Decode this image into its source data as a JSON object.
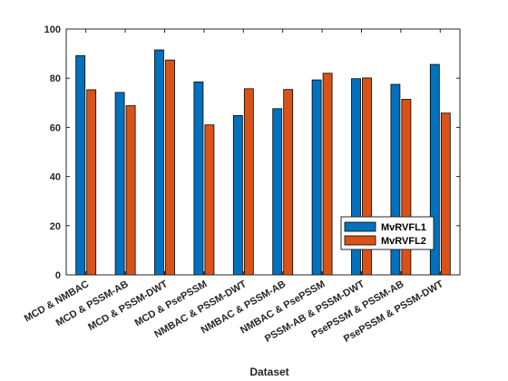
{
  "chart_data": {
    "type": "bar",
    "title": "",
    "xlabel": "Dataset",
    "ylabel": "",
    "ylim": [
      0,
      100
    ],
    "yticks": [
      0,
      20,
      40,
      60,
      80,
      100
    ],
    "grid": false,
    "legend_position": "lower-right",
    "categories": [
      "MCD & NMBAC",
      "MCD & PSSM-AB",
      "MCD & PSSM-DWT",
      "MCD & PsePSSM",
      "NMBAC & PSSM-DWT",
      "NMBAC & PSSM-AB",
      "NMBAC & PsePSSM",
      "PSSM-AB & PSSM-DWT",
      "PsePSSM & PSSM-AB",
      "PsePSSM & PSSM-DWT"
    ],
    "series": [
      {
        "name": "MvRVFL1",
        "color": "#0072BD",
        "values": [
          89.2,
          74.2,
          91.5,
          78.5,
          64.8,
          67.6,
          79.3,
          79.8,
          77.5,
          85.6
        ]
      },
      {
        "name": "MvRVFL2",
        "color": "#D95319",
        "values": [
          75.3,
          68.8,
          87.4,
          61.0,
          75.7,
          75.4,
          82.0,
          80.1,
          71.4,
          65.8
        ]
      }
    ]
  }
}
